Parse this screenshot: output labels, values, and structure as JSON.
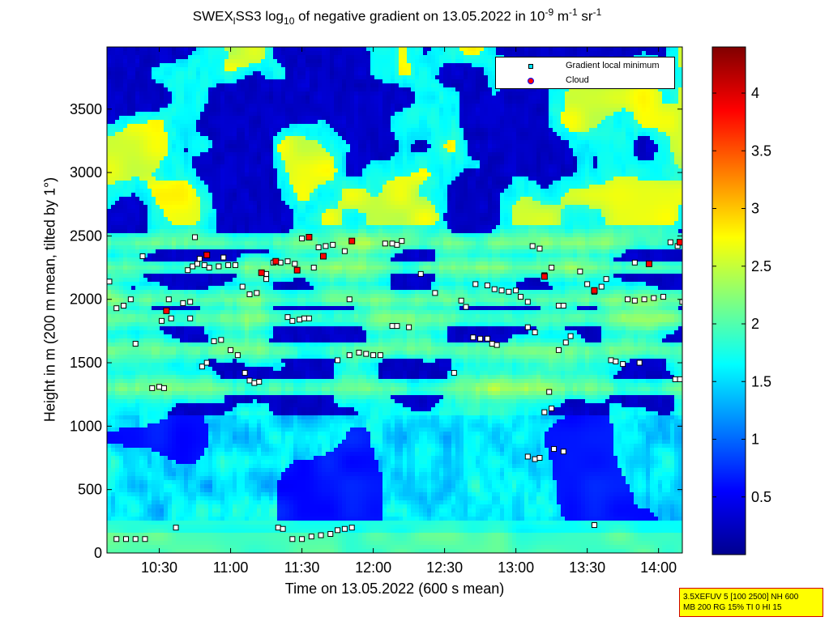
{
  "chart_data": {
    "type": "heatmap",
    "title": {
      "prefix": "SWEX",
      "prefix_sub": "l",
      "mid": "SS3 log",
      "mid_sub": "10",
      "rest": " of negative gradient on 13.05.2022 in 10",
      "exp1": "-9",
      "unit1": " m",
      "exp2": "-1",
      "unit2": " sr",
      "exp3": "-1"
    },
    "xlabel": "Time on 13.05.2022 (600 s mean)",
    "ylabel": "Height in m (200 m mean, tilted by 1°)",
    "xlim": [
      "10:08",
      "14:10"
    ],
    "ylim": [
      0,
      3990
    ],
    "x_ticks": [
      "10:30",
      "11:00",
      "11:30",
      "12:00",
      "12:30",
      "13:00",
      "13:30",
      "14:00"
    ],
    "y_ticks": [
      0,
      500,
      1000,
      1500,
      2000,
      2500,
      3000,
      3500
    ],
    "colorbar": {
      "range": [
        0,
        4.4
      ],
      "ticks": [
        0.5,
        1,
        1.5,
        2,
        2.5,
        3,
        3.5,
        4
      ],
      "colormap": "jet"
    },
    "legend": {
      "position": "top-right",
      "entries": [
        {
          "label": "Gradient local minimum",
          "color": "#00e5ff",
          "marker": "square"
        },
        {
          "label": "Cloud",
          "color": "#ff0000",
          "marker": "circle"
        }
      ]
    },
    "layers_m": [
      120,
      200,
      1300,
      1600,
      1850,
      2000,
      2250,
      2450
    ],
    "gradient_minima": [
      [
        "10:09",
        2140
      ],
      [
        "10:12",
        1930
      ],
      [
        "10:15",
        1950
      ],
      [
        "10:18",
        2000
      ],
      [
        "10:16",
        110
      ],
      [
        "10:12",
        110
      ],
      [
        "10:20",
        110
      ],
      [
        "10:24",
        110
      ],
      [
        "10:20",
        1650
      ],
      [
        "10:23",
        2340
      ],
      [
        "10:27",
        1300
      ],
      [
        "10:30",
        1310
      ],
      [
        "10:32",
        1300
      ],
      [
        "10:34",
        2000
      ],
      [
        "10:31",
        1830
      ],
      [
        "10:35",
        1850
      ],
      [
        "10:37",
        200
      ],
      [
        "10:40",
        1970
      ],
      [
        "10:43",
        1980
      ],
      [
        "10:42",
        2230
      ],
      [
        "10:44",
        2260
      ],
      [
        "10:46",
        2280
      ],
      [
        "10:47",
        2320
      ],
      [
        "10:49",
        2270
      ],
      [
        "10:51",
        2250
      ],
      [
        "10:55",
        2260
      ],
      [
        "10:57",
        2330
      ],
      [
        "10:59",
        2270
      ],
      [
        "11:02",
        2270
      ],
      [
        "10:43",
        1850
      ],
      [
        "10:45",
        2490
      ],
      [
        "10:48",
        1470
      ],
      [
        "10:50",
        1500
      ],
      [
        "10:53",
        1670
      ],
      [
        "10:56",
        1680
      ],
      [
        "11:00",
        1600
      ],
      [
        "11:03",
        1560
      ],
      [
        "11:06",
        1420
      ],
      [
        "11:08",
        1360
      ],
      [
        "11:10",
        1340
      ],
      [
        "11:12",
        1350
      ],
      [
        "11:05",
        2100
      ],
      [
        "11:08",
        2040
      ],
      [
        "11:11",
        2050
      ],
      [
        "11:15",
        2160
      ],
      [
        "11:18",
        2290
      ],
      [
        "11:21",
        2290
      ],
      [
        "11:24",
        2300
      ],
      [
        "11:27",
        2280
      ],
      [
        "11:24",
        1860
      ],
      [
        "11:26",
        1830
      ],
      [
        "11:29",
        1840
      ],
      [
        "11:31",
        1850
      ],
      [
        "11:33",
        1850
      ],
      [
        "11:30",
        2480
      ],
      [
        "11:35",
        2250
      ],
      [
        "11:37",
        2410
      ],
      [
        "11:40",
        2420
      ],
      [
        "11:43",
        2430
      ],
      [
        "11:20",
        200
      ],
      [
        "11:22",
        190
      ],
      [
        "11:15",
        2200
      ],
      [
        "11:26",
        110
      ],
      [
        "11:30",
        110
      ],
      [
        "11:34",
        130
      ],
      [
        "11:38",
        140
      ],
      [
        "11:42",
        150
      ],
      [
        "11:45",
        180
      ],
      [
        "11:48",
        190
      ],
      [
        "11:51",
        200
      ],
      [
        "11:48",
        2380
      ],
      [
        "11:50",
        2000
      ],
      [
        "11:45",
        1520
      ],
      [
        "11:50",
        1560
      ],
      [
        "11:54",
        1580
      ],
      [
        "11:57",
        1570
      ],
      [
        "12:00",
        1560
      ],
      [
        "12:03",
        1560
      ],
      [
        "12:05",
        2440
      ],
      [
        "12:08",
        2440
      ],
      [
        "12:10",
        2430
      ],
      [
        "12:12",
        2460
      ],
      [
        "12:08",
        1790
      ],
      [
        "12:10",
        1790
      ],
      [
        "12:15",
        1780
      ],
      [
        "12:20",
        2200
      ],
      [
        "12:26",
        2050
      ],
      [
        "12:34",
        1420
      ],
      [
        "12:37",
        1990
      ],
      [
        "12:39",
        1940
      ],
      [
        "12:42",
        1700
      ],
      [
        "12:45",
        1690
      ],
      [
        "12:48",
        1690
      ],
      [
        "12:50",
        1650
      ],
      [
        "12:52",
        1640
      ],
      [
        "12:43",
        2120
      ],
      [
        "12:48",
        2110
      ],
      [
        "12:51",
        2080
      ],
      [
        "12:54",
        2070
      ],
      [
        "12:57",
        2060
      ],
      [
        "13:00",
        2070
      ],
      [
        "13:02",
        2020
      ],
      [
        "13:05",
        1980
      ],
      [
        "13:07",
        2420
      ],
      [
        "13:10",
        2400
      ],
      [
        "13:05",
        1780
      ],
      [
        "13:08",
        1740
      ],
      [
        "13:12",
        2190
      ],
      [
        "13:15",
        2250
      ],
      [
        "13:18",
        1950
      ],
      [
        "13:20",
        1950
      ],
      [
        "13:14",
        1270
      ],
      [
        "13:12",
        1110
      ],
      [
        "13:15",
        1140
      ],
      [
        "13:18",
        1600
      ],
      [
        "13:21",
        1660
      ],
      [
        "13:23",
        1710
      ],
      [
        "13:05",
        760
      ],
      [
        "13:08",
        740
      ],
      [
        "13:10",
        750
      ],
      [
        "13:16",
        820
      ],
      [
        "13:20",
        800
      ],
      [
        "13:27",
        2220
      ],
      [
        "13:30",
        2120
      ],
      [
        "13:33",
        2060
      ],
      [
        "13:36",
        2100
      ],
      [
        "13:38",
        2160
      ],
      [
        "13:40",
        1520
      ],
      [
        "13:42",
        1510
      ],
      [
        "13:45",
        1490
      ],
      [
        "13:47",
        2000
      ],
      [
        "13:50",
        1990
      ],
      [
        "13:54",
        2000
      ],
      [
        "13:58",
        2010
      ],
      [
        "14:02",
        2020
      ],
      [
        "14:05",
        2450
      ],
      [
        "14:08",
        2420
      ],
      [
        "14:07",
        1370
      ],
      [
        "14:09",
        1370
      ],
      [
        "14:10",
        1980
      ],
      [
        "13:33",
        220
      ],
      [
        "13:52",
        1500
      ],
      [
        "13:50",
        2290
      ]
    ],
    "clouds": [
      [
        "10:33",
        1910
      ],
      [
        "10:50",
        2350
      ],
      [
        "11:19",
        2300
      ],
      [
        "11:28",
        2230
      ],
      [
        "11:39",
        2340
      ],
      [
        "11:51",
        2460
      ],
      [
        "13:12",
        2180
      ],
      [
        "13:33",
        2070
      ],
      [
        "13:56",
        2280
      ],
      [
        "14:09",
        2450
      ],
      [
        "11:13",
        2210
      ],
      [
        "11:33",
        2490
      ]
    ]
  },
  "infobox": {
    "line1": "3.5XEFUV 5 [100 2500] NH 600",
    "line2": "MB 200 RG 15% TI 0 HI 15"
  },
  "colors": {
    "accent_red": "#ff0000",
    "legend_cyan": "#00e5ff",
    "info_yellow": "#ffff00"
  }
}
